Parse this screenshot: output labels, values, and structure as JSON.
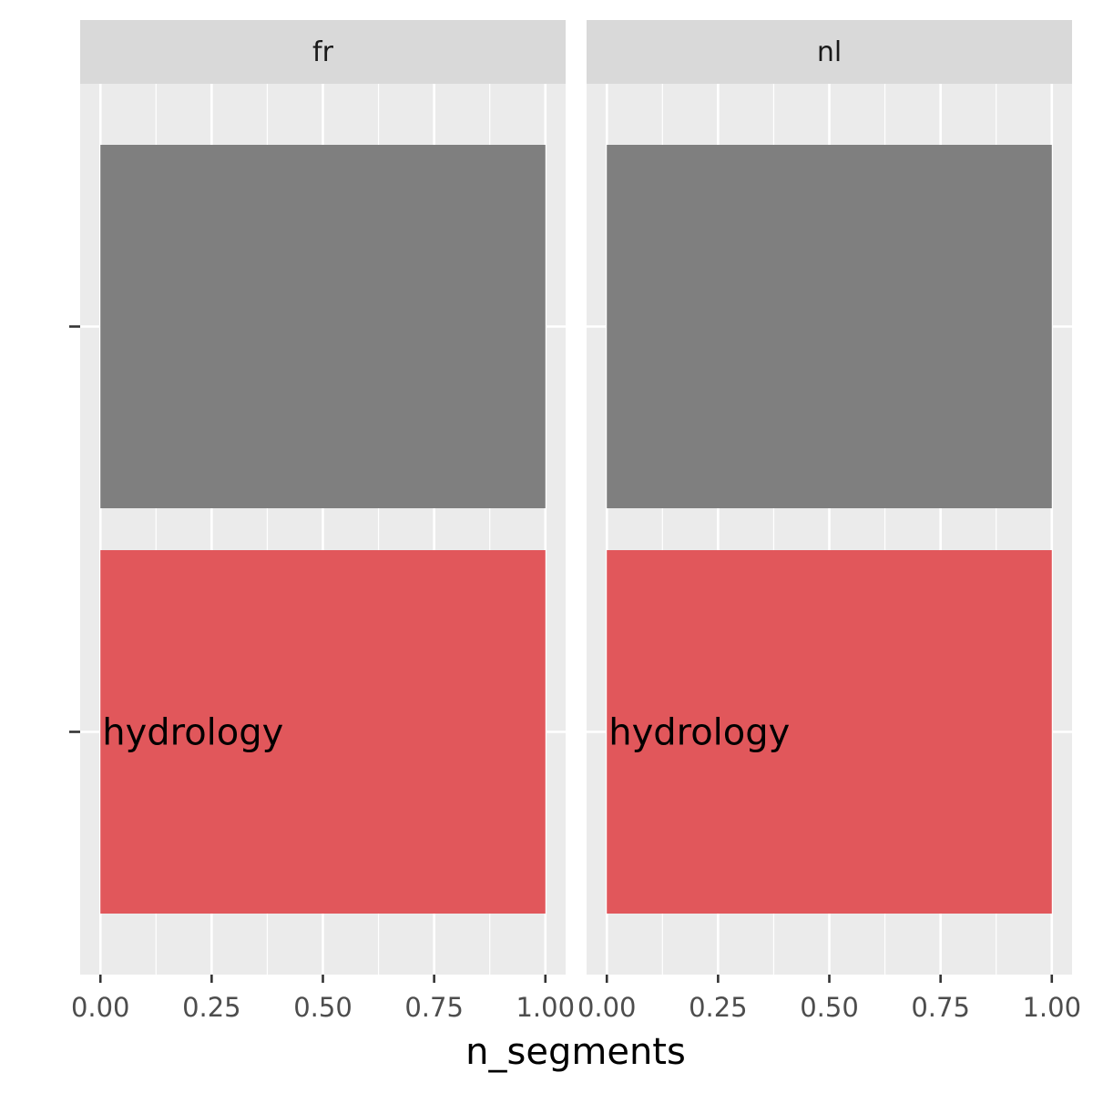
{
  "chart_data": {
    "type": "bar",
    "orientation": "horizontal",
    "facet_by": "language",
    "facets": [
      {
        "name": "fr",
        "bars": [
          {
            "category": "",
            "label": "",
            "value": 1.0,
            "color": "#7f7f7f"
          },
          {
            "category": "hydrology",
            "label": "hydrology",
            "value": 1.0,
            "color": "#e1575b"
          }
        ]
      },
      {
        "name": "nl",
        "bars": [
          {
            "category": "",
            "label": "",
            "value": 1.0,
            "color": "#7f7f7f"
          },
          {
            "category": "hydrology",
            "label": "hydrology",
            "value": 1.0,
            "color": "#e1575b"
          }
        ]
      }
    ],
    "xlabel": "n_segments",
    "ylabel": "",
    "xlim": [
      -0.0455,
      1.0455
    ],
    "xticks": [
      0,
      0.25,
      0.5,
      0.75,
      1.0
    ],
    "xtick_labels": [
      "0.00",
      "0.25",
      "0.50",
      "0.75",
      "1.00"
    ],
    "ytick_labels": [
      "",
      ""
    ],
    "grid": true,
    "legend": "none",
    "colors": {
      "panel_background": "#ebebeb",
      "strip_background": "#d9d9d9",
      "grid": "#ffffff"
    }
  }
}
